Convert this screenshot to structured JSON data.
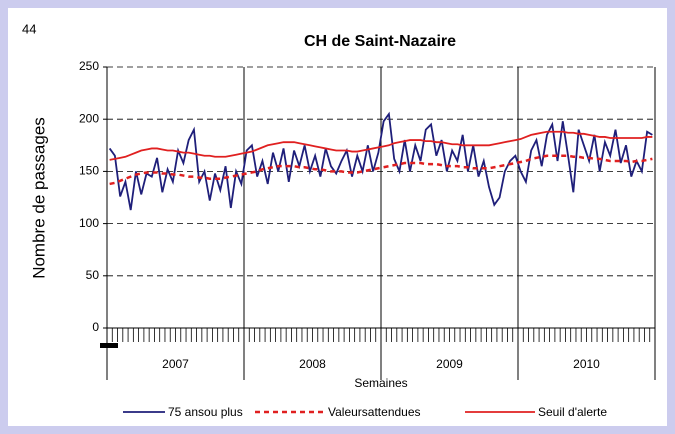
{
  "page_label": "44",
  "chart_data": {
    "type": "line",
    "title": "CH de Saint-Nazaire",
    "ylabel": "Nombre de passages",
    "xlabel": "Semaines",
    "groups": [
      "2007",
      "2008",
      "2009",
      "2010"
    ],
    "ylim": [
      0,
      250
    ],
    "yticks": [
      0,
      50,
      100,
      150,
      200,
      250
    ],
    "grid": true,
    "series": [
      {
        "name": "75 ansou plus",
        "color": "#1f1f7a",
        "style": "solid",
        "values": [
          172,
          165,
          126,
          140,
          113,
          150,
          128,
          148,
          145,
          163,
          130,
          152,
          140,
          170,
          158,
          180,
          190,
          140,
          150,
          122,
          148,
          132,
          155,
          115,
          150,
          138,
          170,
          175,
          145,
          160,
          138,
          168,
          150,
          172,
          140,
          170,
          155,
          175,
          150,
          165,
          145,
          172,
          155,
          148,
          160,
          170,
          145,
          165,
          150,
          175,
          150,
          168,
          198,
          205,
          162,
          150,
          180,
          150,
          175,
          160,
          190,
          195,
          165,
          180,
          150,
          170,
          160,
          185,
          150,
          175,
          145,
          160,
          135,
          118,
          125,
          150,
          160,
          165,
          150,
          140,
          170,
          180,
          155,
          185,
          195,
          160,
          198,
          165,
          130,
          190,
          175,
          160,
          185,
          150,
          178,
          165,
          190,
          158,
          175,
          145,
          160,
          150,
          188,
          185
        ]
      },
      {
        "name": "Valeursattendues",
        "color": "#e02020",
        "style": "dashed",
        "values": [
          138,
          139,
          141,
          143,
          145,
          147,
          148,
          149,
          149,
          149,
          148,
          148,
          147,
          147,
          146,
          145,
          145,
          144,
          144,
          143,
          143,
          143,
          144,
          145,
          146,
          147,
          148,
          149,
          150,
          152,
          153,
          154,
          155,
          155,
          155,
          155,
          154,
          154,
          153,
          152,
          152,
          151,
          150,
          150,
          150,
          149,
          149,
          149,
          150,
          151,
          152,
          153,
          154,
          155,
          156,
          157,
          158,
          158,
          158,
          158,
          157,
          157,
          157,
          156,
          155,
          155,
          155,
          154,
          154,
          153,
          153,
          153,
          153,
          154,
          155,
          156,
          157,
          158,
          159,
          160,
          162,
          163,
          164,
          165,
          165,
          165,
          165,
          165,
          164,
          164,
          163,
          163,
          162,
          162,
          161,
          160,
          160,
          160,
          160,
          159,
          160,
          160,
          161,
          162
        ]
      },
      {
        "name": "Seuil d'alerte",
        "color": "#e02020",
        "style": "solid",
        "values": [
          161,
          162,
          163,
          164,
          166,
          168,
          170,
          171,
          172,
          172,
          171,
          170,
          170,
          169,
          168,
          168,
          167,
          166,
          165,
          165,
          164,
          164,
          164,
          165,
          166,
          167,
          168,
          169,
          171,
          173,
          175,
          176,
          177,
          178,
          178,
          178,
          177,
          176,
          175,
          174,
          173,
          172,
          171,
          170,
          170,
          170,
          169,
          169,
          170,
          171,
          172,
          173,
          174,
          175,
          177,
          178,
          179,
          180,
          180,
          180,
          179,
          179,
          178,
          178,
          177,
          176,
          176,
          175,
          175,
          175,
          175,
          175,
          175,
          176,
          177,
          178,
          179,
          180,
          181,
          183,
          185,
          186,
          187,
          188,
          188,
          188,
          188,
          187,
          187,
          186,
          186,
          185,
          184,
          183,
          183,
          182,
          182,
          182,
          182,
          182,
          182,
          182,
          183,
          183
        ]
      }
    ]
  }
}
